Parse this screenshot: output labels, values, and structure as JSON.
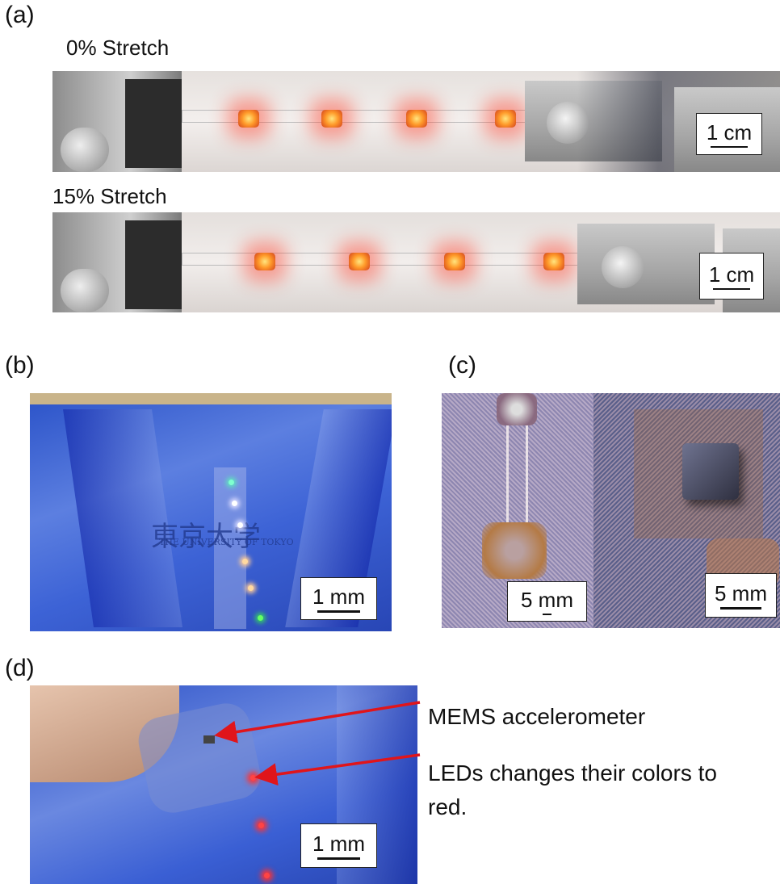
{
  "panels": [
    {
      "label": "(a)",
      "images": [
        {
          "caption": "0% Stretch",
          "scale_bar": "1 cm"
        },
        {
          "caption": "15% Stretch",
          "scale_bar": "1 cm"
        }
      ]
    },
    {
      "label": "(b)",
      "images": [
        {
          "photo_text": [
            "東京大学",
            "THE UNIVERSITY OF TOKYO"
          ],
          "scale_bar": "1 mm"
        }
      ]
    },
    {
      "label": "(c)",
      "images": [
        {
          "scale_bar": "5 mm"
        },
        {
          "scale_bar": "5 mm"
        }
      ]
    },
    {
      "label": "(d)",
      "images": [
        {
          "scale_bar": "1 mm"
        }
      ],
      "annotations": [
        "MEMS accelerometer",
        "LEDs changes their colors to red."
      ]
    }
  ]
}
